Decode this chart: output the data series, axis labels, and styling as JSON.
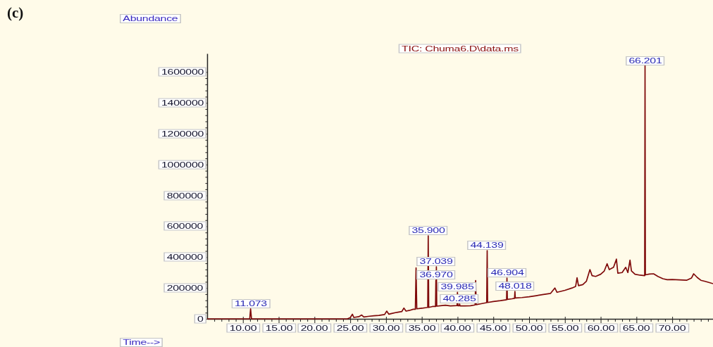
{
  "chart_data": {
    "type": "line",
    "title": "TIC: Chuma6.D\\data.ms",
    "xlabel": "Time-->",
    "ylabel": "Abundance",
    "annotations": [
      "(c)",
      {
        "text": "11.073",
        "x": 11.073,
        "y": 65000
      },
      {
        "text": "35.900",
        "x": 35.9,
        "y": 538000
      },
      {
        "text": "37.039",
        "x": 37.039,
        "y": 337000
      },
      {
        "text": "36.970",
        "x": 36.97,
        "y": 250000
      },
      {
        "text": "39.985",
        "x": 39.985,
        "y": 172000
      },
      {
        "text": "40.285",
        "x": 40.285,
        "y": 96000
      },
      {
        "text": "44.139",
        "x": 44.139,
        "y": 442000
      },
      {
        "text": "46.904",
        "x": 46.904,
        "y": 264000
      },
      {
        "text": "48.018",
        "x": 48.018,
        "y": 178000
      },
      {
        "text": "66.201",
        "x": 66.201,
        "y": 1640000
      }
    ],
    "x": [
      5,
      10.95,
      11.073,
      11.2,
      24.6,
      25,
      25.3,
      25.5,
      26.2,
      26.6,
      26.9,
      27.5,
      28.3,
      29,
      29.8,
      30.1,
      30.4,
      30.8,
      31.5,
      32.2,
      32.5,
      32.8,
      33.3,
      33.8,
      34.1,
      34.2,
      34.3,
      34.8,
      35.2,
      35.5,
      35.83,
      35.9,
      35.97,
      36.5,
      36.92,
      36.97,
      37.005,
      37.039,
      37.09,
      37.6,
      38.3,
      39,
      39.93,
      39.985,
      40.05,
      40.23,
      40.285,
      40.35,
      41,
      41.8,
      42.45,
      42.53,
      42.6,
      43.3,
      44.07,
      44.139,
      44.2,
      45,
      46,
      46.85,
      46.904,
      46.96,
      47.6,
      47.96,
      48.018,
      48.07,
      49,
      50,
      51,
      52,
      53,
      53.6,
      53.9,
      55,
      56,
      56.5,
      56.7,
      56.9,
      57.5,
      58,
      58.5,
      58.8,
      59.3,
      60,
      60.5,
      60.9,
      61.2,
      61.8,
      62.2,
      62.4,
      63,
      63.5,
      63.8,
      64.1,
      64.3,
      64.8,
      65.5,
      66.15,
      66.201,
      66.25,
      66.8,
      67.4,
      68,
      68.7,
      69.3,
      70,
      71,
      72,
      72.7,
      73,
      73.5,
      74,
      74.6,
      75.2,
      75.7
    ],
    "series": [
      {
        "color": "#7f0a0a",
        "values": [
          0,
          0,
          65000,
          0,
          0,
          8000,
          30000,
          9000,
          14000,
          25000,
          12000,
          16000,
          20000,
          22000,
          28000,
          50000,
          30000,
          35000,
          42000,
          47000,
          70000,
          50000,
          55000,
          62000,
          62000,
          330000,
          65000,
          68000,
          70000,
          72000,
          74000,
          538000,
          74000,
          80000,
          80000,
          250000,
          180000,
          337000,
          82000,
          85000,
          88000,
          84000,
          86000,
          172000,
          85000,
          85000,
          96000,
          84000,
          84000,
          85000,
          90000,
          248000,
          92000,
          98000,
          105000,
          442000,
          106000,
          112000,
          118000,
          124000,
          264000,
          126000,
          130000,
          133000,
          178000,
          135000,
          138000,
          143000,
          150000,
          158000,
          165000,
          200000,
          172000,
          185000,
          200000,
          210000,
          266000,
          215000,
          222000,
          243000,
          319000,
          280000,
          275000,
          289000,
          310000,
          357000,
          319000,
          334000,
          387000,
          296000,
          300000,
          334000,
          300000,
          380000,
          311000,
          289000,
          283000,
          280000,
          1640000,
          285000,
          290000,
          292000,
          275000,
          260000,
          254000,
          255000,
          253000,
          250000,
          265000,
          292000,
          268000,
          250000,
          243000,
          235000,
          228000
        ]
      }
    ],
    "xlim": [
      5,
      75.7
    ],
    "xticks": [
      {
        "value": 6,
        "label": null
      },
      {
        "value": 7,
        "label": null
      },
      {
        "value": 8,
        "label": null
      },
      {
        "value": 9,
        "label": null
      },
      {
        "value": 10,
        "label": "10.00"
      },
      {
        "value": 11,
        "label": null
      },
      {
        "value": 12,
        "label": null
      },
      {
        "value": 13,
        "label": null
      },
      {
        "value": 14,
        "label": null
      },
      {
        "value": 15,
        "label": "15.00"
      },
      {
        "value": 16,
        "label": null
      },
      {
        "value": 17,
        "label": null
      },
      {
        "value": 18,
        "label": null
      },
      {
        "value": 19,
        "label": null
      },
      {
        "value": 20,
        "label": "20.00"
      },
      {
        "value": 21,
        "label": null
      },
      {
        "value": 22,
        "label": null
      },
      {
        "value": 23,
        "label": null
      },
      {
        "value": 24,
        "label": null
      },
      {
        "value": 25,
        "label": "25.00"
      },
      {
        "value": 26,
        "label": null
      },
      {
        "value": 27,
        "label": null
      },
      {
        "value": 28,
        "label": null
      },
      {
        "value": 29,
        "label": null
      },
      {
        "value": 30,
        "label": "30.00"
      },
      {
        "value": 31,
        "label": null
      },
      {
        "value": 32,
        "label": null
      },
      {
        "value": 33,
        "label": null
      },
      {
        "value": 34,
        "label": null
      },
      {
        "value": 35,
        "label": "35.00"
      },
      {
        "value": 36,
        "label": null
      },
      {
        "value": 37,
        "label": null
      },
      {
        "value": 38,
        "label": null
      },
      {
        "value": 39,
        "label": null
      },
      {
        "value": 40,
        "label": "40.00"
      },
      {
        "value": 41,
        "label": null
      },
      {
        "value": 42,
        "label": null
      },
      {
        "value": 43,
        "label": null
      },
      {
        "value": 44,
        "label": null
      },
      {
        "value": 45,
        "label": "45.00"
      },
      {
        "value": 46,
        "label": null
      },
      {
        "value": 47,
        "label": null
      },
      {
        "value": 48,
        "label": null
      },
      {
        "value": 49,
        "label": null
      },
      {
        "value": 50,
        "label": "50.00"
      },
      {
        "value": 51,
        "label": null
      },
      {
        "value": 52,
        "label": null
      },
      {
        "value": 53,
        "label": null
      },
      {
        "value": 54,
        "label": null
      },
      {
        "value": 55,
        "label": "55.00"
      },
      {
        "value": 56,
        "label": null
      },
      {
        "value": 57,
        "label": null
      },
      {
        "value": 58,
        "label": null
      },
      {
        "value": 59,
        "label": null
      },
      {
        "value": 60,
        "label": "60.00"
      },
      {
        "value": 61,
        "label": null
      },
      {
        "value": 62,
        "label": null
      },
      {
        "value": 63,
        "label": null
      },
      {
        "value": 64,
        "label": null
      },
      {
        "value": 65,
        "label": "65.00"
      },
      {
        "value": 66,
        "label": null
      },
      {
        "value": 67,
        "label": null
      },
      {
        "value": 68,
        "label": null
      },
      {
        "value": 69,
        "label": null
      },
      {
        "value": 70,
        "label": "70.00"
      },
      {
        "value": 71,
        "label": null
      },
      {
        "value": 72,
        "label": null
      },
      {
        "value": 73,
        "label": null
      },
      {
        "value": 74,
        "label": null
      },
      {
        "value": 75,
        "label": null
      }
    ],
    "ylim": [
      0,
      1720000
    ],
    "yticks": [
      0,
      {
        "value": 40000,
        "label": null
      },
      {
        "value": 80000,
        "label": null
      },
      {
        "value": 120000,
        "label": null
      },
      {
        "value": 160000,
        "label": null
      },
      200000,
      {
        "value": 240000,
        "label": null
      },
      {
        "value": 280000,
        "label": null
      },
      {
        "value": 320000,
        "label": null
      },
      {
        "value": 360000,
        "label": null
      },
      400000,
      {
        "value": 440000,
        "label": null
      },
      {
        "value": 480000,
        "label": null
      },
      {
        "value": 520000,
        "label": null
      },
      {
        "value": 560000,
        "label": null
      },
      600000,
      {
        "value": 640000,
        "label": null
      },
      {
        "value": 680000,
        "label": null
      },
      {
        "value": 720000,
        "label": null
      },
      {
        "value": 760000,
        "label": null
      },
      800000,
      {
        "value": 840000,
        "label": null
      },
      {
        "value": 880000,
        "label": null
      },
      {
        "value": 920000,
        "label": null
      },
      {
        "value": 960000,
        "label": null
      },
      1000000,
      {
        "value": 1040000,
        "label": null
      },
      {
        "value": 1080000,
        "label": null
      },
      {
        "value": 1120000,
        "label": null
      },
      {
        "value": 1160000,
        "label": null
      },
      1200000,
      {
        "value": 1240000,
        "label": null
      },
      {
        "value": 1280000,
        "label": null
      },
      {
        "value": 1320000,
        "label": null
      },
      {
        "value": 1360000,
        "label": null
      },
      1400000,
      {
        "value": 1440000,
        "label": null
      },
      {
        "value": 1480000,
        "label": null
      },
      {
        "value": 1520000,
        "label": null
      },
      {
        "value": 1560000,
        "label": null
      },
      1600000
    ]
  }
}
